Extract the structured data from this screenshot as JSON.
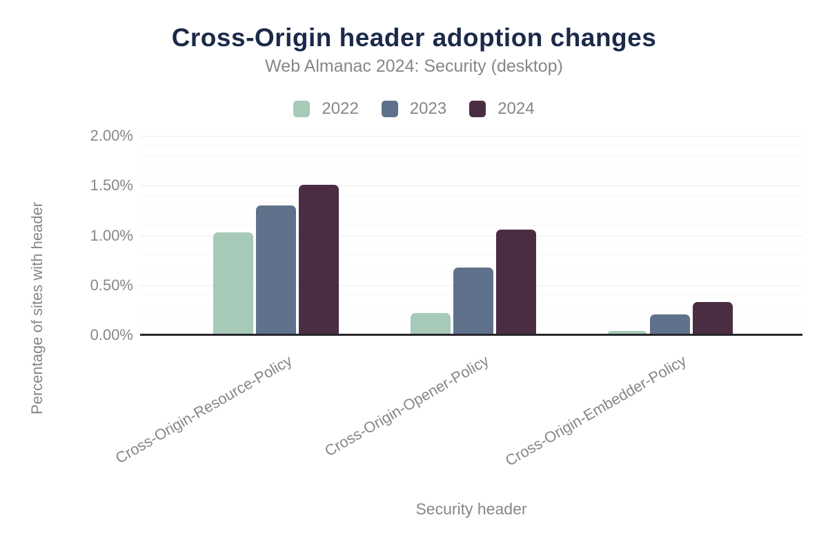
{
  "header": {
    "title": "Cross-Origin header adoption changes",
    "subtitle": "Web Almanac 2024: Security (desktop)"
  },
  "colors": {
    "title_text": "#1b2a49",
    "muted_text": "#84878a",
    "axis_line": "#26262c",
    "gridline_major": "#ededed",
    "gridline_minor": "#f8f8f8"
  },
  "chart_data": {
    "type": "bar",
    "title": "Cross-Origin header adoption changes",
    "subtitle": "Web Almanac 2024: Security (desktop)",
    "xlabel": "Security header",
    "ylabel": "Percentage of sites with header",
    "categories": [
      "Cross-Origin-Resource-Policy",
      "Cross-Origin-Opener-Policy",
      "Cross-Origin-Embedder-Policy"
    ],
    "series": [
      {
        "name": "2022",
        "color": "#a7cab8",
        "values": [
          1.03,
          0.22,
          0.04
        ]
      },
      {
        "name": "2023",
        "color": "#60718c",
        "values": [
          1.3,
          0.68,
          0.21
        ]
      },
      {
        "name": "2024",
        "color": "#4a2d43",
        "values": [
          1.51,
          1.06,
          0.33
        ]
      }
    ],
    "unit": "%",
    "ylim": [
      0,
      2.0
    ],
    "yticks": [
      {
        "value": 0,
        "label": "0.00%"
      },
      {
        "value": 0.5,
        "label": "0.50%"
      },
      {
        "value": 1.0,
        "label": "1.00%"
      },
      {
        "value": 1.5,
        "label": "1.50%"
      },
      {
        "value": 2.0,
        "label": "2.00%"
      }
    ],
    "grid": {
      "minor_step": 0.1,
      "major_step": 0.5,
      "visible": true
    },
    "legend_position": "top"
  }
}
